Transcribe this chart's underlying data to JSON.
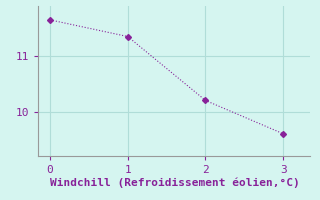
{
  "x": [
    0,
    1,
    2,
    3
  ],
  "y": [
    11.65,
    11.35,
    10.2,
    9.6
  ],
  "line_color": "#882299",
  "marker": "D",
  "marker_size": 3,
  "bg_color": "#d5f5f0",
  "axis_color": "#999999",
  "xlabel": "Windchill (Refroidissement éolien,°C)",
  "xlabel_color": "#882299",
  "xlabel_fontsize": 8,
  "ytick_values": [
    10,
    11
  ],
  "xtick_values": [
    0,
    1,
    2,
    3
  ],
  "xlim": [
    -0.15,
    3.35
  ],
  "ylim": [
    9.2,
    11.9
  ],
  "grid_color": "#b0ddd8",
  "tick_color": "#882299",
  "tick_fontsize": 8
}
